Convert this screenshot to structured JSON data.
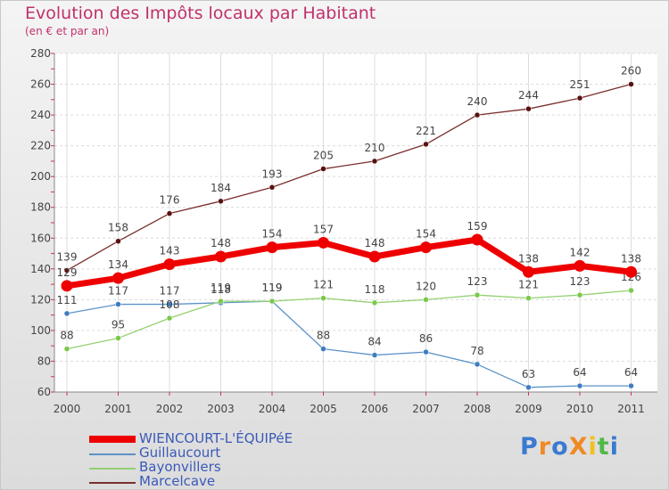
{
  "title": "Evolution des Impôts locaux par Habitant",
  "subtitle": "(en € et par an)",
  "logo": {
    "text": "ProXiti",
    "colors": [
      "#3a7ad0",
      "#f08a24",
      "#3a7ad0",
      "#f08a24",
      "#f0c020",
      "#50b848",
      "#3a7ad0"
    ]
  },
  "chart_data": {
    "type": "line",
    "title": "Evolution des Impôts locaux par Habitant",
    "subtitle": "(en € et par an)",
    "xlabel": "",
    "ylabel": "",
    "x": [
      "2000",
      "2001",
      "2002",
      "2003",
      "2004",
      "2005",
      "2006",
      "2007",
      "2008",
      "2009",
      "2010",
      "2011"
    ],
    "ylim": [
      60,
      280
    ],
    "yticks": [
      "60",
      "80",
      "100",
      "120",
      "140",
      "160",
      "180",
      "200",
      "220",
      "240",
      "260",
      "280"
    ],
    "legend_position": "bottom-left",
    "series": [
      {
        "name": "Marcelcave",
        "color": "#7a2e2e",
        "marker": "#5a1010",
        "values": [
          139,
          158,
          176,
          184,
          193,
          205,
          210,
          221,
          240,
          244,
          251,
          260
        ]
      },
      {
        "name": "Guillaucourt",
        "color": "#5b93c8",
        "marker": "#3f7dc0",
        "values": [
          111,
          117,
          117,
          118,
          119,
          88,
          84,
          86,
          78,
          63,
          64,
          64
        ]
      },
      {
        "name": "Bayonvillers",
        "color": "#93d070",
        "marker": "#7ac94a",
        "values": [
          88,
          95,
          108,
          119,
          119,
          121,
          118,
          120,
          123,
          121,
          123,
          126
        ]
      },
      {
        "name": "WIENCOURT-L'ÉQUIPéE",
        "color": "#ee0000",
        "marker": "#ee0000",
        "values": [
          129,
          134,
          143,
          148,
          154,
          157,
          148,
          154,
          159,
          138,
          142,
          138
        ]
      }
    ]
  },
  "legend": [
    {
      "name": "WIENCOURT-L'ÉQUIPéE",
      "color": "#ee0000"
    },
    {
      "name": "Guillaucourt",
      "color": "#5b93c8"
    },
    {
      "name": "Bayonvillers",
      "color": "#93d070"
    },
    {
      "name": "Marcelcave",
      "color": "#7a2e2e"
    }
  ]
}
